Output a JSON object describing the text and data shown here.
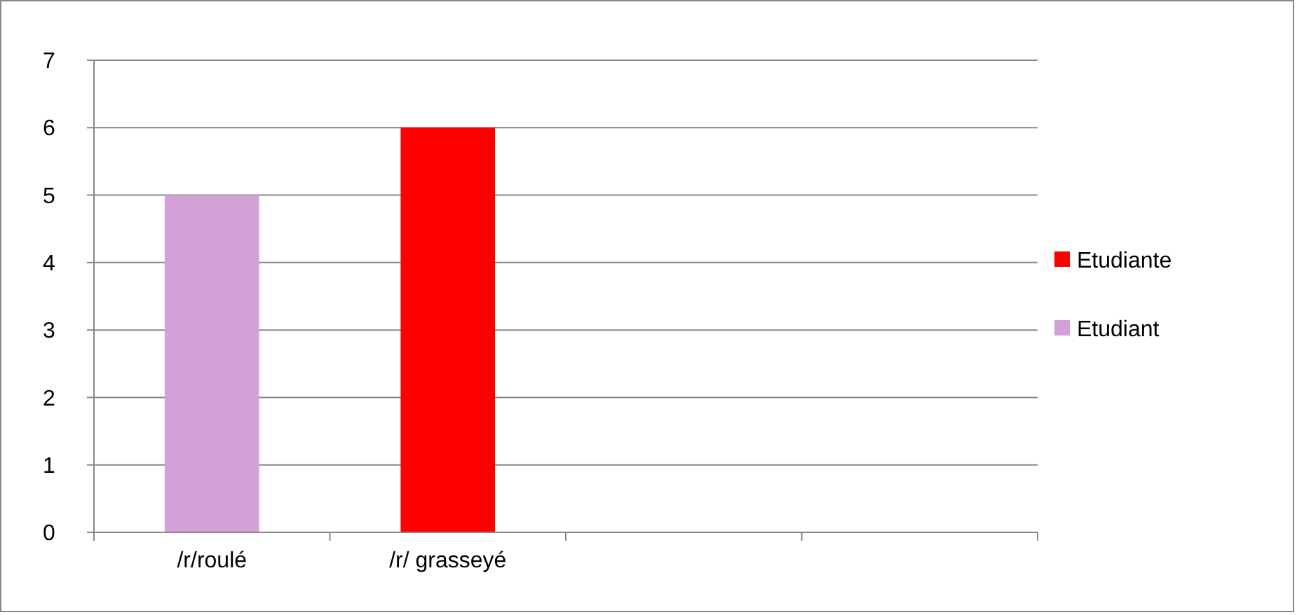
{
  "chart_data": {
    "type": "bar",
    "stacked": true,
    "categories": [
      "/r/roulé",
      "/r/ grasseyé",
      null,
      null
    ],
    "series": [
      {
        "name": "Etudiant",
        "color": "#d59fd7",
        "values": [
          5,
          null,
          null,
          null
        ]
      },
      {
        "name": "Etudiante",
        "color": "#ff0000",
        "values": [
          null,
          6,
          null,
          null
        ]
      }
    ],
    "ylim": [
      0,
      7
    ],
    "yticks": [
      0,
      1,
      2,
      3,
      4,
      5,
      6,
      7
    ],
    "grid": "y",
    "legend": "right"
  }
}
